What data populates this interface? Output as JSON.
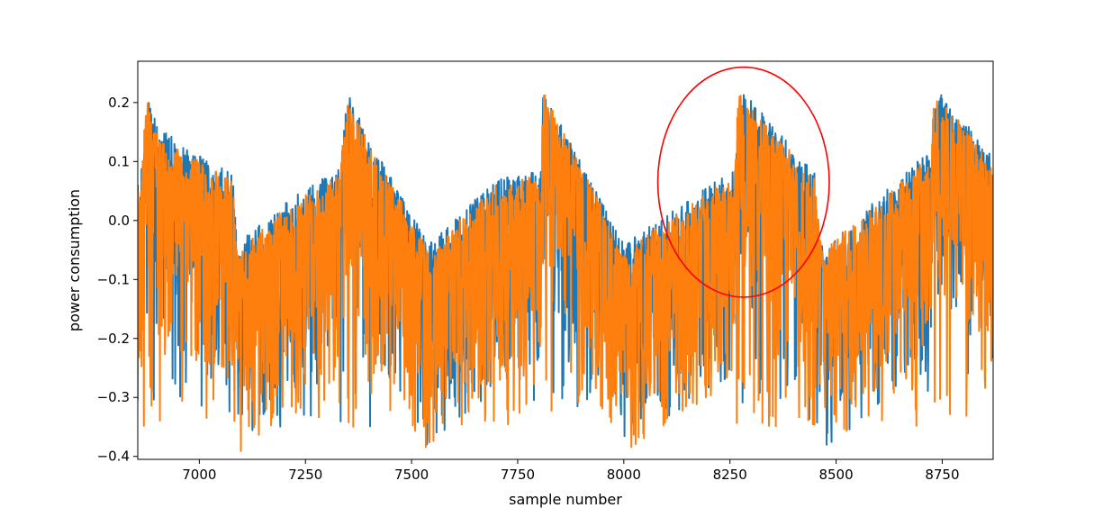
{
  "chart_data": {
    "type": "line",
    "title": "",
    "xlabel": "sample number",
    "ylabel": "power consumption",
    "xlim": [
      6855,
      8870
    ],
    "ylim": [
      -0.405,
      0.27
    ],
    "x_ticks": [
      7000,
      7250,
      7500,
      7750,
      8000,
      8250,
      8500,
      8750
    ],
    "y_ticks": [
      -0.4,
      -0.3,
      -0.2,
      -0.1,
      0.0,
      0.1,
      0.2
    ],
    "x_tick_labels": [
      "7000",
      "7250",
      "7500",
      "7750",
      "8000",
      "8250",
      "8500",
      "8750"
    ],
    "y_tick_labels": [
      "−0.4",
      "−0.3",
      "−0.2",
      "−0.1",
      "0.0",
      "0.1",
      "0.2"
    ],
    "grid": false,
    "legend": "none",
    "period_samples": 460,
    "series": [
      {
        "color": "#1f77b4",
        "envelope_points": [
          {
            "x": 6860,
            "y": 0.07
          },
          {
            "x": 6880,
            "y": 0.21
          },
          {
            "x": 6900,
            "y": 0.16
          },
          {
            "x": 7000,
            "y": 0.11
          },
          {
            "x": 7080,
            "y": 0.08
          },
          {
            "x": 7090,
            "y": -0.04
          },
          {
            "x": 7200,
            "y": 0.03
          },
          {
            "x": 7330,
            "y": 0.09
          },
          {
            "x": 7350,
            "y": 0.22
          },
          {
            "x": 7400,
            "y": 0.14
          },
          {
            "x": 7540,
            "y": -0.04
          },
          {
            "x": 7700,
            "y": 0.07
          },
          {
            "x": 7800,
            "y": 0.09
          },
          {
            "x": 7810,
            "y": 0.22
          },
          {
            "x": 8000,
            "y": -0.04
          },
          {
            "x": 8260,
            "y": 0.09
          },
          {
            "x": 8280,
            "y": 0.22
          },
          {
            "x": 8450,
            "y": 0.08
          },
          {
            "x": 8470,
            "y": -0.05
          },
          {
            "x": 8720,
            "y": 0.12
          },
          {
            "x": 8740,
            "y": 0.22
          },
          {
            "x": 8870,
            "y": 0.11
          }
        ],
        "min_value": -0.405
      },
      {
        "color": "#ff7f0e",
        "envelope_points": [
          {
            "x": 6860,
            "y": 0.06
          },
          {
            "x": 6875,
            "y": 0.21
          },
          {
            "x": 6900,
            "y": 0.15
          },
          {
            "x": 7000,
            "y": 0.1
          },
          {
            "x": 7080,
            "y": 0.07
          },
          {
            "x": 7090,
            "y": -0.05
          },
          {
            "x": 7200,
            "y": 0.02
          },
          {
            "x": 7330,
            "y": 0.08
          },
          {
            "x": 7350,
            "y": 0.21
          },
          {
            "x": 7400,
            "y": 0.13
          },
          {
            "x": 7540,
            "y": -0.05
          },
          {
            "x": 7700,
            "y": 0.06
          },
          {
            "x": 7800,
            "y": 0.08
          },
          {
            "x": 7810,
            "y": 0.22
          },
          {
            "x": 8000,
            "y": -0.05
          },
          {
            "x": 8260,
            "y": 0.08
          },
          {
            "x": 8270,
            "y": 0.22
          },
          {
            "x": 8450,
            "y": 0.07
          },
          {
            "x": 8470,
            "y": -0.05
          },
          {
            "x": 8720,
            "y": 0.11
          },
          {
            "x": 8730,
            "y": 0.22
          },
          {
            "x": 8870,
            "y": 0.1
          }
        ],
        "min_value": -0.4
      }
    ],
    "annotations": [
      {
        "type": "ellipse",
        "color": "#ff0000",
        "center": [
          8282,
          0.065
        ],
        "rx": 202,
        "ry": 0.195
      }
    ]
  }
}
